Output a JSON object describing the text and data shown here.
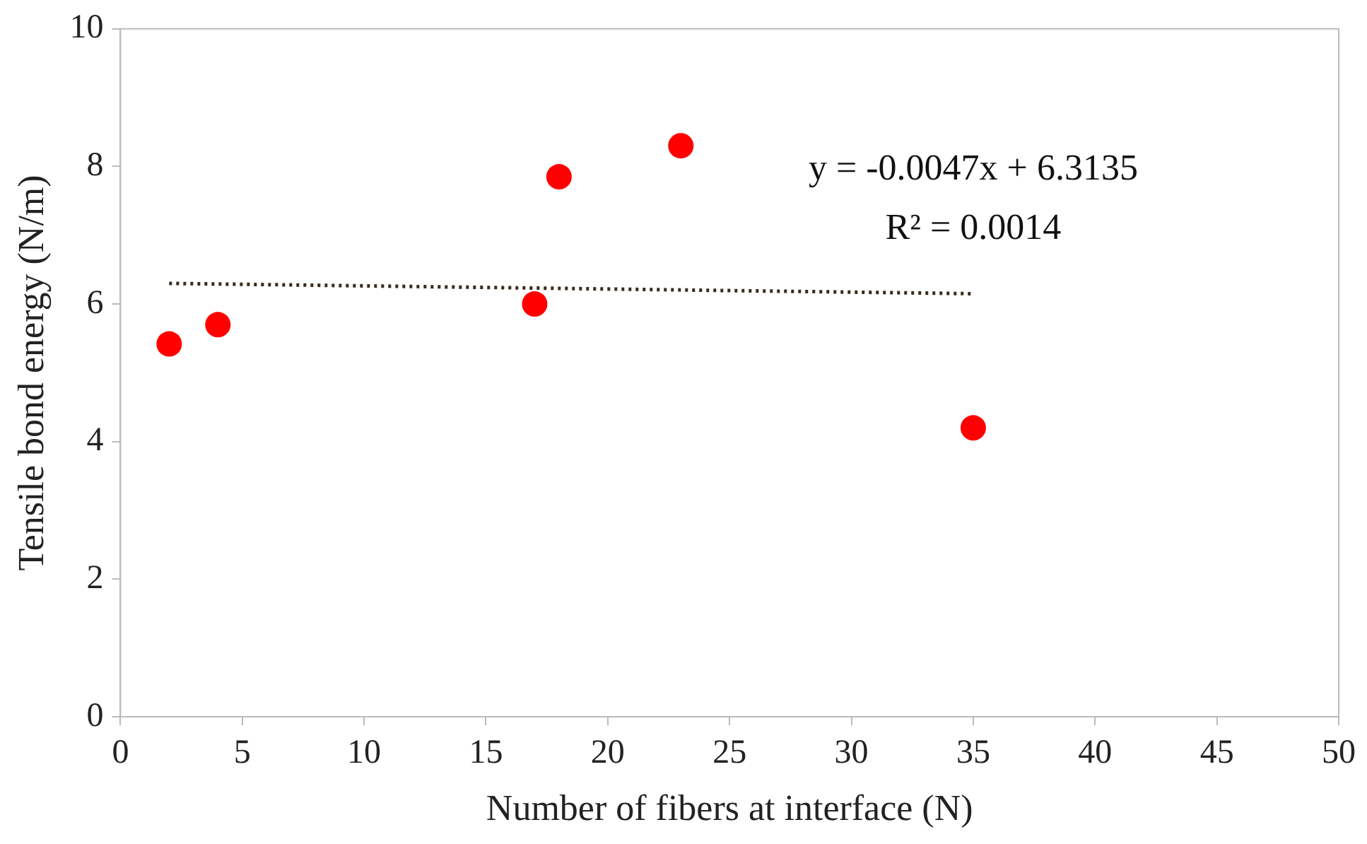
{
  "chart_data": {
    "type": "scatter",
    "xlabel": "Number of fibers at interface (N)",
    "ylabel": "Tensile bond energy (N/m)",
    "xlim": [
      0,
      50
    ],
    "xticks": [
      0,
      5,
      10,
      15,
      20,
      25,
      30,
      35,
      40,
      45,
      50
    ],
    "ylim": [
      0,
      10
    ],
    "yticks": [
      0,
      2,
      4,
      6,
      8,
      10
    ],
    "grid": false,
    "legend": false,
    "marker": "circle",
    "series": [
      {
        "type": "scatter",
        "color": "#ff0000",
        "x": [
          2,
          4,
          17,
          18,
          23,
          35
        ],
        "values": [
          5.42,
          5.7,
          6.0,
          7.85,
          8.3,
          4.2
        ]
      },
      {
        "type": "line",
        "color": "#3a2a1a",
        "x": [
          2,
          35
        ],
        "values": [
          6.3,
          6.15
        ],
        "marker": "none",
        "line_style": "dotted"
      }
    ],
    "annotations": [
      "y = -0.0047x + 6.3135",
      "R² = 0.0014"
    ]
  }
}
